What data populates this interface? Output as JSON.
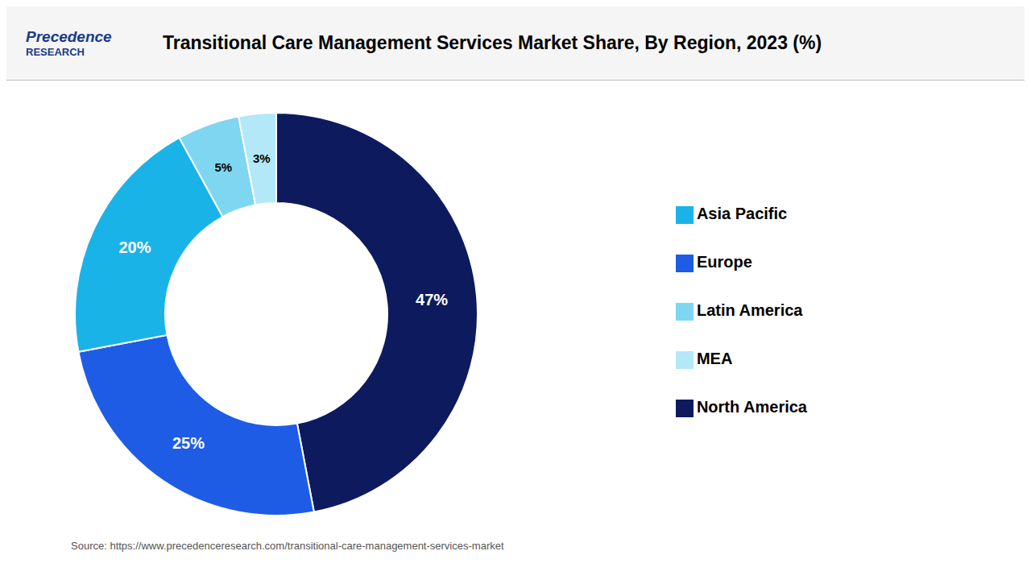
{
  "chart_data": {
    "type": "pie",
    "title": "Transitional Care Management Services Market Share, By Region, 2023 (%)",
    "categories": [
      "North America",
      "Europe",
      "Asia Pacific",
      "Latin America",
      "MEA"
    ],
    "values": [
      47,
      25,
      20,
      5,
      3
    ],
    "value_labels": [
      "47%",
      "25%",
      "20%",
      "5%",
      "3%"
    ],
    "colors": [
      "#0d1b5e",
      "#1e5ce6",
      "#1ab3e8",
      "#7fd6f0",
      "#b2e8f8"
    ],
    "data_labels": true,
    "legend": "right",
    "annotations": [
      "Precedence",
      "RESEARCH",
      "Source: https://www.precedenceresearch.com/transitional-care-management-services-market"
    ]
  }
}
